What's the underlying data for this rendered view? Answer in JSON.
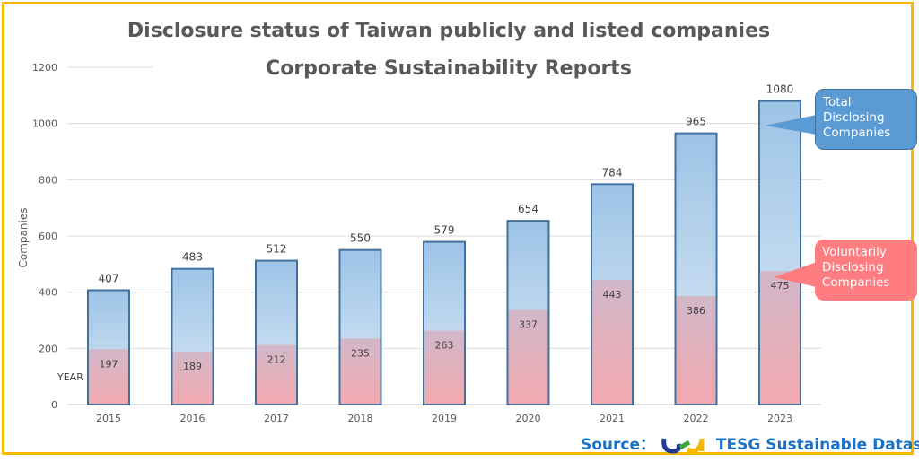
{
  "chart_data": {
    "type": "bar",
    "title": "Disclosure status of Taiwan publicly and listed companies",
    "subtitle": "Corporate Sustainability Reports",
    "xlabel": "YEAR",
    "ylabel": "Companies",
    "ylim": [
      0,
      1200
    ],
    "yticks": [
      0,
      200,
      400,
      600,
      800,
      1000,
      1200
    ],
    "grid": true,
    "categories": [
      "2015",
      "2016",
      "2017",
      "2018",
      "2019",
      "2020",
      "2021",
      "2022",
      "2023"
    ],
    "series": [
      {
        "name": "Total Disclosing Companies",
        "values": [
          407,
          483,
          512,
          550,
          579,
          654,
          784,
          965,
          1080
        ],
        "color": "#5b9bd5"
      },
      {
        "name": "Voluntarily Disclosing Companies",
        "values": [
          197,
          189,
          212,
          235,
          263,
          337,
          443,
          386,
          475
        ],
        "color": "#ff7c80"
      }
    ]
  },
  "source": {
    "label": "Source：",
    "logo_text": "tesg",
    "name": "TESG Sustainable Dataset"
  },
  "colors": {
    "border": "#f5b800",
    "bar_outline": "#41719c"
  }
}
